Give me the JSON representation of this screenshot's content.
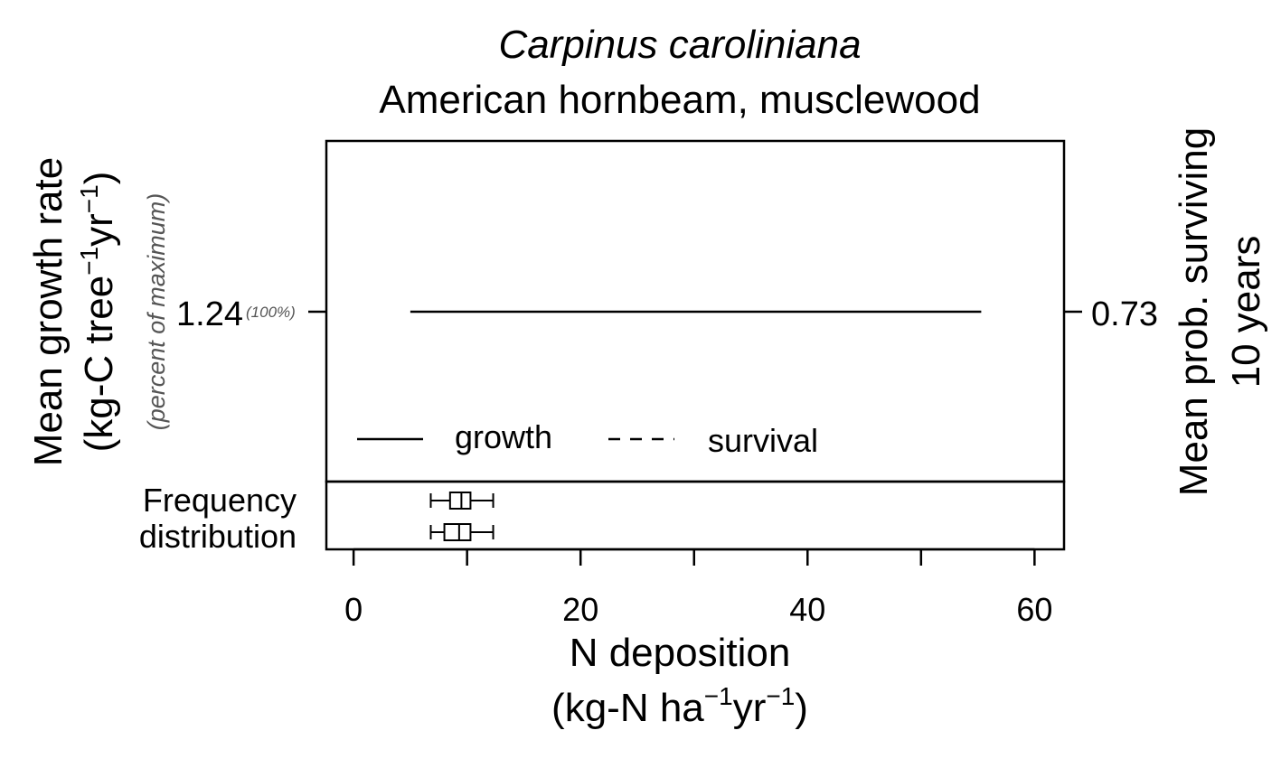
{
  "chart_data": {
    "type": "line",
    "title": "Carpinus caroliniana",
    "subtitle": "American hornbeam, musclewood",
    "xlabel": "N deposition",
    "xlabel_units": "(kg-N ha",
    "xlabel_units_sup1": "−1",
    "xlabel_units_mid": "yr",
    "xlabel_units_sup2": "−1",
    "xlabel_units_end": ")",
    "ylabel_left": "Mean growth rate",
    "ylabel_left_units": "(kg-C tree",
    "ylabel_left_units_sup1": "−1",
    "ylabel_left_units_mid": "yr",
    "ylabel_left_units_sup2": "−1",
    "ylabel_left_units_end": ")",
    "ylabel_left_note": "(percent of maximum)",
    "ylabel_right_line1": "Mean prob. surviving",
    "ylabel_right_line2": "10 years",
    "xlim": [
      -2.4,
      62.6
    ],
    "xticks": [
      0,
      10,
      20,
      30,
      40,
      50,
      60
    ],
    "xtick_labels": [
      "0",
      "20",
      "40",
      "60"
    ],
    "xtick_label_values": [
      0,
      20,
      40,
      60
    ],
    "left_tick": {
      "value": 1.24,
      "label": "1.24",
      "note": "(100%)"
    },
    "right_tick": {
      "value": 0.73,
      "label": "0.73"
    },
    "series": [
      {
        "name": "growth",
        "style": "solid",
        "x": [
          5.0,
          55.3
        ],
        "y": [
          1.24,
          1.24
        ]
      },
      {
        "name": "survival",
        "style": "dashed",
        "x": [],
        "y": []
      }
    ],
    "legend": {
      "position": "bottom-left",
      "items": [
        "growth",
        "survival"
      ]
    },
    "frequency_panel": {
      "label_line1": "Frequency",
      "label_line2": "distribution",
      "boxplots": [
        {
          "min": 6.8,
          "q1": 8.5,
          "median": 9.5,
          "q3": 10.3,
          "max": 12.3
        },
        {
          "min": 6.8,
          "q1": 8.0,
          "median": 9.3,
          "q3": 10.3,
          "max": 12.3
        }
      ]
    }
  }
}
